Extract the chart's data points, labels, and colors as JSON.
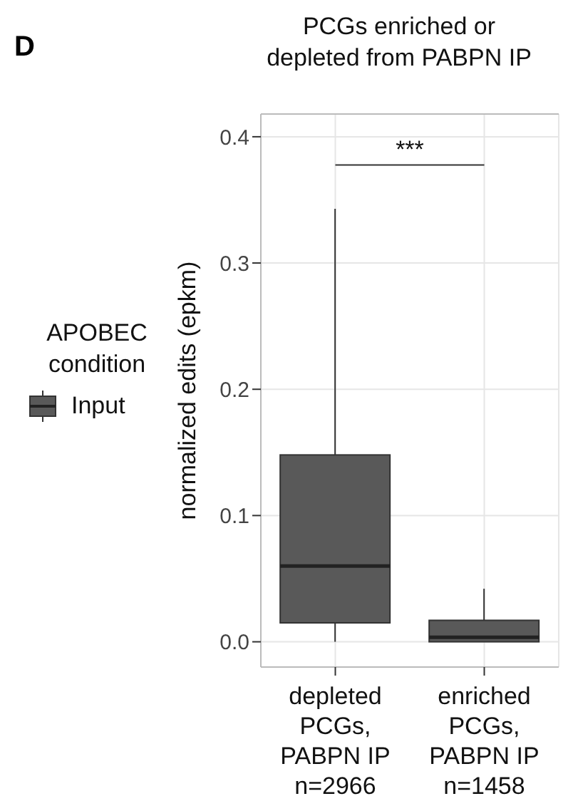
{
  "chart_data": {
    "type": "box",
    "title": "PCGs enriched or\ndepleted from PABPN IP",
    "ylabel": "normalized edits (epkm)",
    "legend_title": "APOBEC\ncondition",
    "categories": [
      "depleted\nPCGs,\nPABPN IP\nn=2966",
      "enriched\nPCGs,\nPABPN IP\nn=1458"
    ],
    "series": [
      {
        "name": "Input",
        "color": "#595959",
        "boxes": [
          {
            "low": 0,
            "q1": 0.015,
            "median": 0.06,
            "q3": 0.148,
            "high": 0.343
          },
          {
            "low": 0,
            "q1": 0,
            "median": 0.0035,
            "q3": 0.017,
            "high": 0.042
          }
        ]
      }
    ],
    "ylim": [
      -0.02,
      0.418
    ],
    "yticks": [
      {
        "value": 0,
        "label": "0.0"
      },
      {
        "value": 0.1,
        "label": "0.1"
      },
      {
        "value": 0.2,
        "label": "0.2"
      },
      {
        "value": 0.3,
        "label": "0.3"
      },
      {
        "value": 0.4,
        "label": "0.4"
      }
    ],
    "grid": true,
    "legend": "left",
    "annotations": [
      "D",
      "***"
    ]
  }
}
